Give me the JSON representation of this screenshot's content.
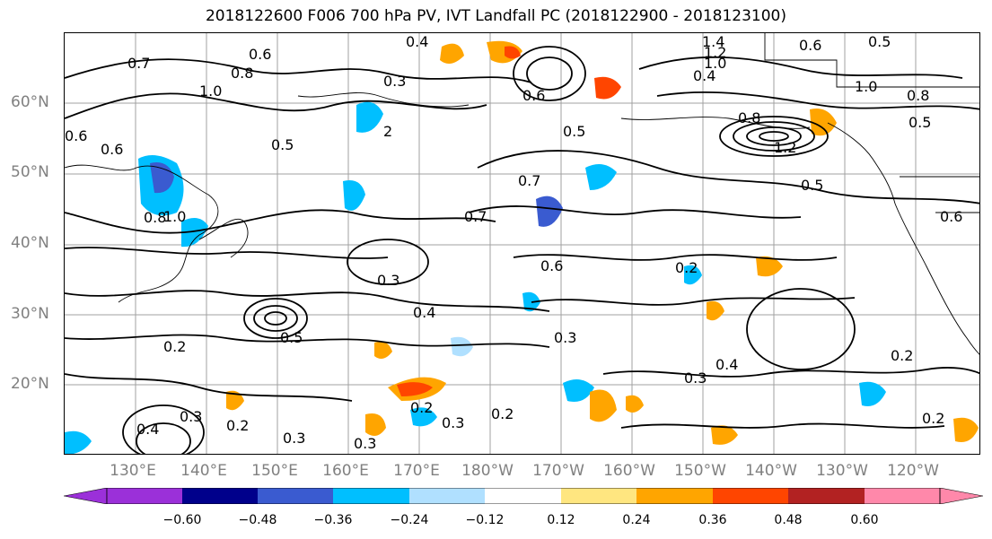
{
  "title": "2018122600 F006 700 hPa PV, IVT Landfall PC (2018122900 - 2018123100)",
  "lat_labels": [
    "60°N",
    "50°N",
    "40°N",
    "30°N",
    "20°N"
  ],
  "lon_labels": [
    "130°E",
    "140°E",
    "150°E",
    "160°E",
    "170°E",
    "180°W",
    "170°W",
    "160°W",
    "150°W",
    "140°W",
    "130°W",
    "120°W"
  ],
  "colorbar": {
    "ticks": [
      "−0.60",
      "−0.48",
      "−0.36",
      "−0.24",
      "−0.12",
      "0.12",
      "0.24",
      "0.36",
      "0.48",
      "0.60"
    ],
    "colors": [
      "#9b30d9",
      "#00008b",
      "#3a5bd0",
      "#00bfff",
      "#b0e0ff",
      "#ffffff",
      "#ffe680",
      "#ffa500",
      "#ff4500",
      "#b22222",
      "#ff88aa"
    ]
  },
  "contour_labels": [
    "0.7",
    "0.6",
    "0.8",
    "1.0",
    "0.3",
    "0.5",
    "0.6",
    "0.4",
    "1.4",
    "1.2",
    "1.0",
    "0.6",
    "0.5",
    "0.4",
    "1.0",
    "0.8",
    "0.5",
    "0.6",
    "0.8",
    "1.2",
    "0.5",
    "0.7",
    "0.5",
    "0.7",
    "0.6",
    "0.2",
    "0.3",
    "0.4",
    "0.3",
    "0.2",
    "0.3",
    "0.2",
    "0.4",
    "0.3",
    "0.2",
    "0.2",
    "0.3",
    "0.2",
    "0.3",
    "0.4",
    "0.2",
    "0.3",
    "0.6",
    "0.8",
    "0.5",
    "0.6",
    "1.0",
    "2"
  ],
  "colors": {
    "contour": "#000000",
    "grid": "#a0a0a0",
    "coast": "#000000"
  }
}
